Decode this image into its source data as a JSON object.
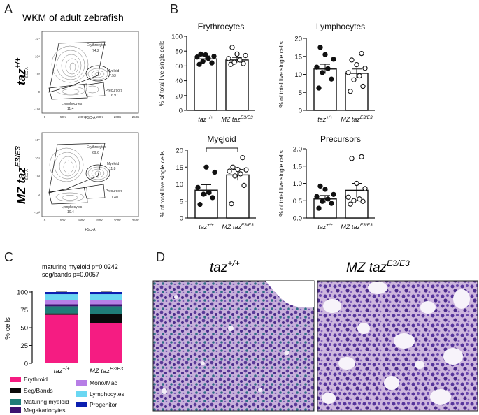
{
  "panels": {
    "A": {
      "letter": "A",
      "title": "WKM of adult zebrafish",
      "row1_label": {
        "base": "taz",
        "sup": "+/+"
      },
      "row2_label": {
        "base": "MZ taz",
        "sup": "E3/E3"
      },
      "flow_plots": [
        {
          "y_ticks": [
            "10⁵",
            "10⁴",
            "10³",
            "0",
            "-10³"
          ],
          "x_ticks": [
            "0",
            "50K",
            "100K",
            "150K",
            "200K",
            "250K"
          ],
          "xlabel": "FSC-A",
          "ylabel": "SSC-A",
          "gates": {
            "erythrocytes": {
              "name": "Erythrocytes",
              "value": "74.2"
            },
            "myeloid": {
              "name": "Myeloid",
              "value": "7.53"
            },
            "precursors": {
              "name": "Precursors",
              "value": "6.97"
            },
            "lymphocytes": {
              "name": "Lymphocytes",
              "value": "11.4"
            }
          }
        },
        {
          "y_ticks": [
            "10⁵",
            "10⁴",
            "10³",
            "0",
            "-10³"
          ],
          "x_ticks": [
            "0",
            "50K",
            "100K",
            "150K",
            "200K",
            "250K"
          ],
          "xlabel": "FSC-A",
          "ylabel": "SSC-A",
          "gates": {
            "erythrocytes": {
              "name": "Erythrocytes",
              "value": "69.6"
            },
            "myeloid": {
              "name": "Myeloid",
              "value": "11.8"
            },
            "precursors": {
              "name": "Precursors",
              "value": "1.40"
            },
            "lymphocytes": {
              "name": "Lymphocytes",
              "value": "10.4"
            }
          }
        }
      ]
    },
    "B": {
      "letter": "B"
    },
    "C": {
      "letter": "C",
      "stat1": "maturing myeloid p=0.0242",
      "stat2": "seg/bands p=0.0057"
    },
    "D": {
      "letter": "D",
      "label1": {
        "base": "taz",
        "sup": "+/+"
      },
      "label2": {
        "base": "MZ taz",
        "sup": "E3/E3"
      }
    }
  },
  "colors": {
    "erythroid": "#f51c82",
    "seg_bands": "#0a0a0a",
    "maturing_myeloid": "#1f7d78",
    "megakariocytes": "#3c1270",
    "mono_mac": "#b77ee6",
    "lymphocytes": "#6ad7f2",
    "progenitor": "#0b1fb0",
    "bar_fill_wt": "#ffffff",
    "bar_fill_mz": "#0a0a0a",
    "histology_bg": "#c9b3dc",
    "histology_nuclei": "#4a2c8a"
  },
  "chart_data": [
    {
      "id": "erythrocytes",
      "type": "bar",
      "title": "Erythrocytes",
      "ylabel": "% of total live single cells",
      "categories": [
        "taz+/+",
        "MZ tazE3/E3"
      ],
      "category_labels": [
        {
          "base": "taz",
          "sup": "+/+"
        },
        {
          "base": "MZ taz",
          "sup": "E3/E3"
        }
      ],
      "ylim": [
        0,
        100
      ],
      "yticks": [
        0,
        20,
        40,
        60,
        80,
        100
      ],
      "values": [
        69.5,
        68
      ],
      "errors": [
        4,
        3.5
      ],
      "points": [
        [
          62,
          64,
          66,
          70,
          72,
          73,
          75,
          76
        ],
        [
          62,
          63,
          65,
          68,
          70,
          74,
          76,
          85
        ]
      ]
    },
    {
      "id": "lymphocytes",
      "type": "bar",
      "title": "Lymphocytes",
      "ylabel": "% of total live single cells",
      "categories": [
        "taz+/+",
        "MZ tazE3/E3"
      ],
      "category_labels": [
        {
          "base": "taz",
          "sup": "+/+"
        },
        {
          "base": "MZ taz",
          "sup": "E3/E3"
        }
      ],
      "ylim": [
        0,
        20
      ],
      "yticks": [
        0,
        5,
        10,
        15,
        20
      ],
      "values": [
        11.5,
        10.3
      ],
      "errors": [
        1.3,
        1.2
      ],
      "points": [
        [
          6.2,
          8.7,
          10.5,
          11.6,
          12.0,
          14.2,
          15.5,
          17.5
        ],
        [
          5.3,
          6.7,
          8.5,
          9.6,
          10.5,
          11.7,
          12.7,
          14.0,
          15.8
        ]
      ]
    },
    {
      "id": "myeloid",
      "type": "bar",
      "title": "Myeloid",
      "ylabel": "% of total live single cells",
      "categories": [
        "taz+/+",
        "MZ tazE3/E3"
      ],
      "category_labels": [
        {
          "base": "taz",
          "sup": "+/+"
        },
        {
          "base": "MZ taz",
          "sup": "E3/E3"
        }
      ],
      "ylim": [
        0,
        20
      ],
      "yticks": [
        0,
        5,
        10,
        15,
        20
      ],
      "values": [
        8.2,
        12.7
      ],
      "errors": [
        1.6,
        1.6
      ],
      "points": [
        [
          4.0,
          6.0,
          7.0,
          7.5,
          9.0,
          13.5,
          15.0
        ],
        [
          4.2,
          9.6,
          12.4,
          13.0,
          13.8,
          14.2,
          14.3,
          15.0,
          17.8
        ]
      ],
      "significance": {
        "between": [
          0,
          1
        ],
        "label": "*"
      }
    },
    {
      "id": "precursors",
      "type": "bar",
      "title": "Precursors",
      "ylabel": "% of total live single cells",
      "categories": [
        "taz+/+",
        "MZ tazE3/E3"
      ],
      "category_labels": [
        {
          "base": "taz",
          "sup": "+/+"
        },
        {
          "base": "MZ taz",
          "sup": "E3/E3"
        }
      ],
      "ylim": [
        0,
        2.0
      ],
      "yticks": [
        0,
        0.5,
        1.0,
        1.5,
        2.0
      ],
      "ytick_labels": [
        "0.0",
        "0.5",
        "1.0",
        "1.5",
        "2.0"
      ],
      "values": [
        0.55,
        0.8
      ],
      "errors": [
        0.1,
        0.2
      ],
      "points": [
        [
          0.28,
          0.42,
          0.48,
          0.55,
          0.62,
          0.68,
          0.83,
          0.92
        ],
        [
          0.4,
          0.48,
          0.5,
          0.55,
          0.6,
          0.85,
          1.0,
          1.72,
          1.77
        ]
      ]
    },
    {
      "id": "cell-composition",
      "type": "bar",
      "stacked": true,
      "ylabel": "% cells",
      "ylim": [
        0,
        100
      ],
      "yticks": [
        0,
        25,
        50,
        75,
        100
      ],
      "categories": [
        "taz+/+",
        "MZ tazE3/E3"
      ],
      "category_labels": [
        {
          "base": "taz",
          "sup": "+/+"
        },
        {
          "base": "MZ taz",
          "sup": "E3/E3"
        }
      ],
      "series": [
        {
          "name": "Erythroid",
          "values": [
            68,
            56
          ]
        },
        {
          "name": "Seg/Bands",
          "values": [
            2,
            13
          ]
        },
        {
          "name": "Maturing myeloid",
          "values": [
            10,
            11
          ]
        },
        {
          "name": "Megakariocytes",
          "values": [
            3,
            3
          ]
        },
        {
          "name": "Mono/Mac",
          "values": [
            6,
            6
          ]
        },
        {
          "name": "Lymphocytes",
          "values": [
            8,
            8
          ]
        },
        {
          "name": "Progenitor",
          "values": [
            3,
            3
          ]
        }
      ],
      "legend": [
        "Erythroid",
        "Seg/Bands",
        "Maturing myeloid",
        "Megakariocytes",
        "Mono/Mac",
        "Lymphocytes",
        "Progenitor"
      ]
    }
  ]
}
